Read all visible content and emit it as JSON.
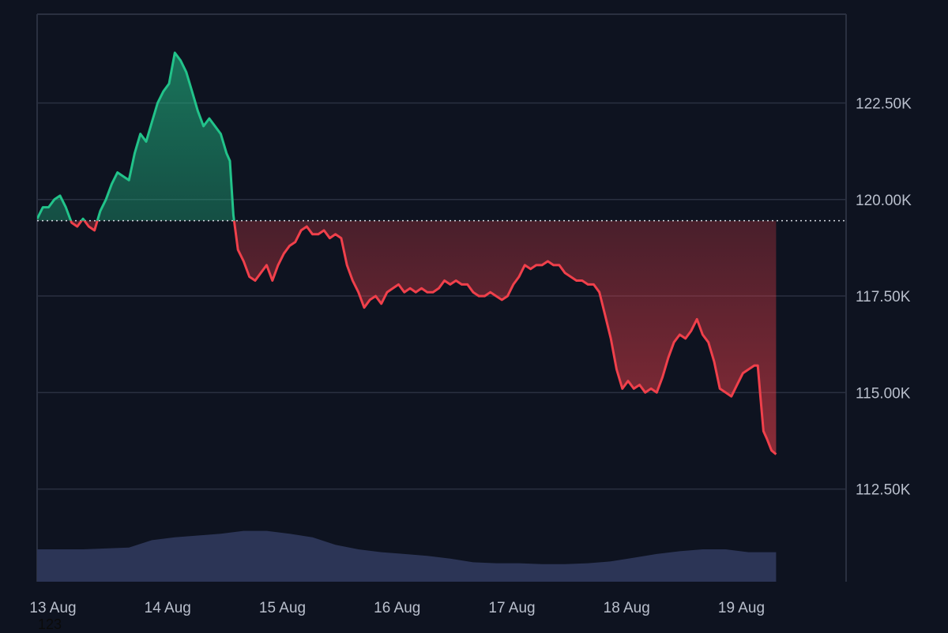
{
  "colors": {
    "background": "#0e1320",
    "up": "#22c38a",
    "down": "#f0404b",
    "grid": "#2a3040",
    "volume": "#2c3556",
    "axis_text": "#b9bfcc",
    "baseline": "#d7dbe3"
  },
  "watermark": "123",
  "chart_data": {
    "type": "area",
    "baseline": 119.45,
    "y_unit": "K",
    "ylim": [
      110.1,
      124.8
    ],
    "xlim": [
      0,
      7.05
    ],
    "y_ticks": [
      {
        "value": 122.5,
        "label": "122.50K"
      },
      {
        "value": 120.0,
        "label": "120.00K"
      },
      {
        "value": 117.5,
        "label": "117.50K"
      },
      {
        "value": 115.0,
        "label": "115.00K"
      },
      {
        "value": 112.5,
        "label": "112.50K"
      }
    ],
    "x_ticks": [
      {
        "value": 0.0,
        "label": "13 Aug"
      },
      {
        "value": 1.0,
        "label": "14 Aug"
      },
      {
        "value": 2.0,
        "label": "15 Aug"
      },
      {
        "value": 3.0,
        "label": "16 Aug"
      },
      {
        "value": 4.0,
        "label": "17 Aug"
      },
      {
        "value": 5.0,
        "label": "18 Aug"
      },
      {
        "value": 6.0,
        "label": "19 Aug"
      }
    ],
    "price": [
      [
        0.0,
        119.5
      ],
      [
        0.05,
        119.8
      ],
      [
        0.1,
        119.8
      ],
      [
        0.15,
        120.0
      ],
      [
        0.2,
        120.1
      ],
      [
        0.25,
        119.8
      ],
      [
        0.3,
        119.4
      ],
      [
        0.35,
        119.3
      ],
      [
        0.4,
        119.5
      ],
      [
        0.45,
        119.3
      ],
      [
        0.5,
        119.2
      ],
      [
        0.55,
        119.7
      ],
      [
        0.6,
        120.0
      ],
      [
        0.65,
        120.4
      ],
      [
        0.7,
        120.7
      ],
      [
        0.75,
        120.6
      ],
      [
        0.8,
        120.5
      ],
      [
        0.85,
        121.2
      ],
      [
        0.9,
        121.7
      ],
      [
        0.95,
        121.5
      ],
      [
        1.0,
        122.0
      ],
      [
        1.05,
        122.5
      ],
      [
        1.1,
        122.8
      ],
      [
        1.15,
        123.0
      ],
      [
        1.2,
        123.8
      ],
      [
        1.25,
        123.6
      ],
      [
        1.3,
        123.3
      ],
      [
        1.35,
        122.8
      ],
      [
        1.4,
        122.3
      ],
      [
        1.45,
        121.9
      ],
      [
        1.5,
        122.1
      ],
      [
        1.55,
        121.9
      ],
      [
        1.6,
        121.7
      ],
      [
        1.65,
        121.2
      ],
      [
        1.68,
        121.0
      ],
      [
        1.71,
        119.6
      ],
      [
        1.75,
        118.7
      ],
      [
        1.8,
        118.4
      ],
      [
        1.85,
        118.0
      ],
      [
        1.9,
        117.9
      ],
      [
        1.95,
        118.1
      ],
      [
        2.0,
        118.3
      ],
      [
        2.05,
        117.9
      ],
      [
        2.1,
        118.3
      ],
      [
        2.15,
        118.6
      ],
      [
        2.2,
        118.8
      ],
      [
        2.25,
        118.9
      ],
      [
        2.3,
        119.2
      ],
      [
        2.35,
        119.3
      ],
      [
        2.4,
        119.1
      ],
      [
        2.45,
        119.1
      ],
      [
        2.5,
        119.2
      ],
      [
        2.55,
        119.0
      ],
      [
        2.6,
        119.1
      ],
      [
        2.65,
        119.0
      ],
      [
        2.7,
        118.3
      ],
      [
        2.75,
        117.9
      ],
      [
        2.8,
        117.6
      ],
      [
        2.85,
        117.2
      ],
      [
        2.9,
        117.4
      ],
      [
        2.95,
        117.5
      ],
      [
        3.0,
        117.3
      ],
      [
        3.05,
        117.6
      ],
      [
        3.1,
        117.7
      ],
      [
        3.15,
        117.8
      ],
      [
        3.2,
        117.6
      ],
      [
        3.25,
        117.7
      ],
      [
        3.3,
        117.6
      ],
      [
        3.35,
        117.7
      ],
      [
        3.4,
        117.6
      ],
      [
        3.45,
        117.6
      ],
      [
        3.5,
        117.7
      ],
      [
        3.55,
        117.9
      ],
      [
        3.6,
        117.8
      ],
      [
        3.65,
        117.9
      ],
      [
        3.7,
        117.8
      ],
      [
        3.75,
        117.8
      ],
      [
        3.8,
        117.6
      ],
      [
        3.85,
        117.5
      ],
      [
        3.9,
        117.5
      ],
      [
        3.95,
        117.6
      ],
      [
        4.0,
        117.5
      ],
      [
        4.05,
        117.4
      ],
      [
        4.1,
        117.5
      ],
      [
        4.15,
        117.8
      ],
      [
        4.2,
        118.0
      ],
      [
        4.25,
        118.3
      ],
      [
        4.3,
        118.2
      ],
      [
        4.35,
        118.3
      ],
      [
        4.4,
        118.3
      ],
      [
        4.45,
        118.4
      ],
      [
        4.5,
        118.3
      ],
      [
        4.55,
        118.3
      ],
      [
        4.6,
        118.1
      ],
      [
        4.65,
        118.0
      ],
      [
        4.7,
        117.9
      ],
      [
        4.75,
        117.9
      ],
      [
        4.8,
        117.8
      ],
      [
        4.85,
        117.8
      ],
      [
        4.9,
        117.6
      ],
      [
        4.95,
        117.0
      ],
      [
        5.0,
        116.4
      ],
      [
        5.05,
        115.6
      ],
      [
        5.1,
        115.1
      ],
      [
        5.15,
        115.3
      ],
      [
        5.2,
        115.1
      ],
      [
        5.25,
        115.2
      ],
      [
        5.3,
        115.0
      ],
      [
        5.35,
        115.1
      ],
      [
        5.4,
        115.0
      ],
      [
        5.45,
        115.4
      ],
      [
        5.5,
        115.9
      ],
      [
        5.55,
        116.3
      ],
      [
        5.6,
        116.5
      ],
      [
        5.65,
        116.4
      ],
      [
        5.7,
        116.6
      ],
      [
        5.75,
        116.9
      ],
      [
        5.8,
        116.5
      ],
      [
        5.85,
        116.3
      ],
      [
        5.9,
        115.8
      ],
      [
        5.95,
        115.1
      ],
      [
        6.0,
        115.0
      ],
      [
        6.05,
        114.9
      ],
      [
        6.1,
        115.2
      ],
      [
        6.15,
        115.5
      ],
      [
        6.2,
        115.6
      ],
      [
        6.25,
        115.7
      ],
      [
        6.28,
        115.7
      ],
      [
        6.3,
        115.0
      ],
      [
        6.33,
        114.0
      ],
      [
        6.36,
        113.8
      ],
      [
        6.4,
        113.5
      ],
      [
        6.44,
        113.4
      ]
    ],
    "volume_ylim": [
      0,
      1
    ],
    "volume": [
      [
        0.0,
        0.35
      ],
      [
        0.4,
        0.35
      ],
      [
        0.8,
        0.37
      ],
      [
        1.0,
        0.45
      ],
      [
        1.2,
        0.48
      ],
      [
        1.4,
        0.5
      ],
      [
        1.6,
        0.52
      ],
      [
        1.8,
        0.55
      ],
      [
        2.0,
        0.55
      ],
      [
        2.2,
        0.52
      ],
      [
        2.4,
        0.48
      ],
      [
        2.6,
        0.4
      ],
      [
        2.8,
        0.35
      ],
      [
        3.0,
        0.32
      ],
      [
        3.2,
        0.3
      ],
      [
        3.4,
        0.28
      ],
      [
        3.6,
        0.25
      ],
      [
        3.8,
        0.21
      ],
      [
        4.0,
        0.2
      ],
      [
        4.2,
        0.2
      ],
      [
        4.4,
        0.19
      ],
      [
        4.6,
        0.19
      ],
      [
        4.8,
        0.2
      ],
      [
        5.0,
        0.22
      ],
      [
        5.2,
        0.26
      ],
      [
        5.4,
        0.3
      ],
      [
        5.6,
        0.33
      ],
      [
        5.8,
        0.35
      ],
      [
        6.0,
        0.35
      ],
      [
        6.2,
        0.32
      ],
      [
        6.44,
        0.32
      ]
    ]
  }
}
